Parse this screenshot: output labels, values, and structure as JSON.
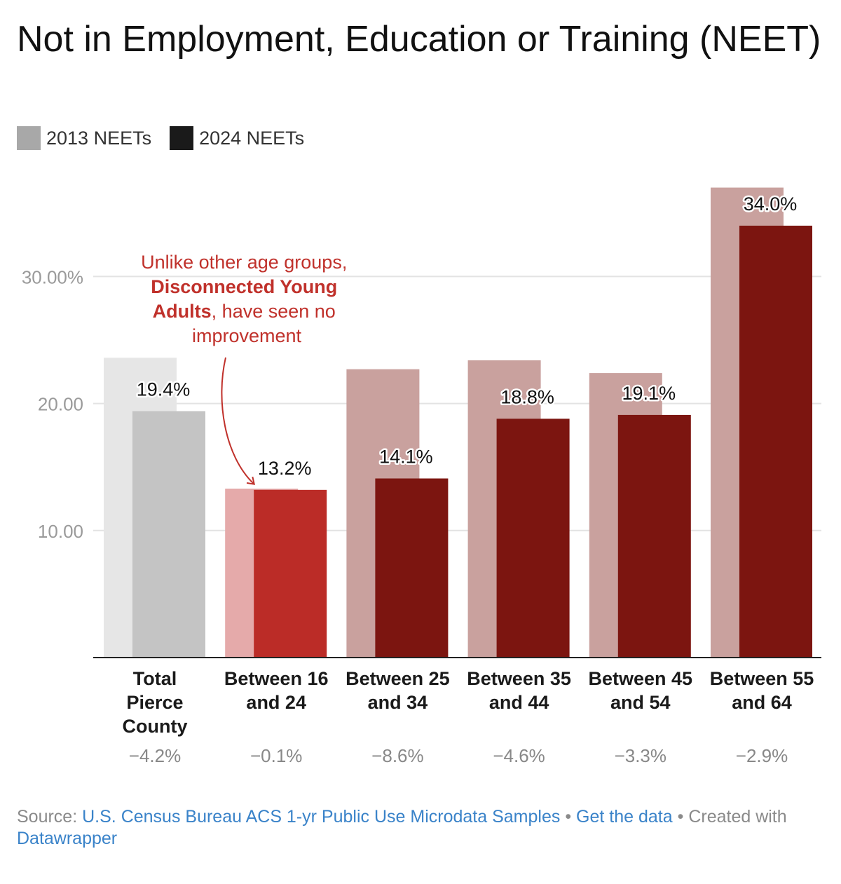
{
  "title": "Not in Employment, Education or Training (NEET)",
  "legend": [
    {
      "label": "2013 NEETs",
      "color": "#a8a8a8"
    },
    {
      "label": "2024 NEETs",
      "color": "#1a1a1a"
    }
  ],
  "chart_data": {
    "type": "bar",
    "categories": [
      "Total Pierce County",
      "Between 16 and 24",
      "Between 25 and 34",
      "Between 35 and 44",
      "Between 45 and 54",
      "Between 55 and 64"
    ],
    "category_lines": [
      [
        "Total",
        "Pierce",
        "County"
      ],
      [
        "Between 16",
        "and 24"
      ],
      [
        "Between 25",
        "and 34"
      ],
      [
        "Between 35",
        "and 44"
      ],
      [
        "Between 45",
        "and 54"
      ],
      [
        "Between 55",
        "and 64"
      ]
    ],
    "series": [
      {
        "name": "2013 NEETs",
        "values": [
          23.6,
          13.3,
          22.7,
          23.4,
          22.4,
          37.0
        ]
      },
      {
        "name": "2024 NEETs",
        "values": [
          19.4,
          13.2,
          14.1,
          18.8,
          19.1,
          34.0
        ]
      }
    ],
    "data_labels": [
      "19.4%",
      "13.2%",
      "14.1%",
      "18.8%",
      "19.1%",
      "34.0%"
    ],
    "change_labels": [
      "−4.2%",
      "−0.1%",
      "−8.6%",
      "−4.6%",
      "−3.3%",
      "−2.9%"
    ],
    "y_ticks": [
      10,
      20,
      30
    ],
    "y_tick_labels": [
      "10.00",
      "20.00",
      "30.00%"
    ],
    "ylim": [
      0,
      37
    ],
    "grid": true,
    "colors": {
      "2013": [
        "#e6e6e6",
        "#e5aaaa",
        "#c9a19e",
        "#c9a19e",
        "#c9a19e",
        "#c9a19e"
      ],
      "2024": [
        "#c4c4c4",
        "#bb2c27",
        "#7c1510",
        "#7c1510",
        "#7c1510",
        "#7c1510"
      ]
    },
    "annotation": {
      "line1": "Unlike other age groups,",
      "bold": "Disconnected Young",
      "bold2": "Adults",
      "rest": ", have seen no",
      "line4": "improvement",
      "color": "#c0312b"
    }
  },
  "footer": {
    "source_prefix": "Source:",
    "source_link": "U.S. Census Bureau ACS 1-yr Public Use Microdata Samples",
    "get_data": "Get the data",
    "created": "Created with",
    "tool": "Datawrapper"
  }
}
